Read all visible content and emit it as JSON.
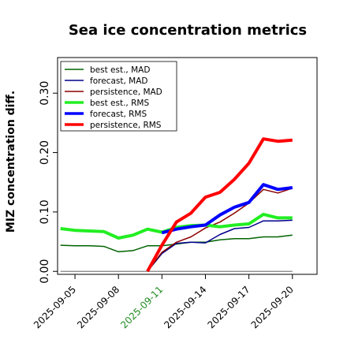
{
  "chart_data": {
    "type": "line",
    "title": "Sea ice concentration metrics",
    "xlabel": "",
    "ylabel": "MIZ concentration diff.",
    "xlim": [
      3.8,
      21.7
    ],
    "ylim": [
      -0.005,
      0.36
    ],
    "x_ticks": [
      {
        "value": 5,
        "label": "2025-09-05",
        "color": "#000000"
      },
      {
        "value": 8,
        "label": "2025-09-08",
        "color": "#000000"
      },
      {
        "value": 11,
        "label": "2025-09-11",
        "color": "#228b22"
      },
      {
        "value": 14,
        "label": "2025-09-14",
        "color": "#000000"
      },
      {
        "value": 17,
        "label": "2025-09-17",
        "color": "#000000"
      },
      {
        "value": 20,
        "label": "2025-09-20",
        "color": "#000000"
      }
    ],
    "y_ticks": [
      {
        "value": 0.0,
        "label": "0.00"
      },
      {
        "value": 0.1,
        "label": "0.10"
      },
      {
        "value": 0.2,
        "label": "0.20"
      },
      {
        "value": 0.3,
        "label": "0.30"
      }
    ],
    "grid": false,
    "legend_position": "top-left",
    "zero_line": {
      "y": 0.0,
      "x_start": 4.0,
      "x_end": 20.0,
      "color": "#808080"
    },
    "series": [
      {
        "name": "best est., MAD",
        "color": "#006400",
        "width": 1.5,
        "x": [
          4,
          5,
          6,
          7,
          8,
          9,
          10,
          11,
          12,
          13,
          14,
          15,
          16,
          17,
          18,
          19,
          20
        ],
        "y": [
          0.044,
          0.043,
          0.043,
          0.042,
          0.033,
          0.035,
          0.043,
          0.043,
          0.046,
          0.049,
          0.049,
          0.053,
          0.055,
          0.055,
          0.058,
          0.058,
          0.061
        ]
      },
      {
        "name": "forecast,  MAD",
        "color": "#00008b",
        "width": 1.5,
        "x": [
          10,
          11,
          12,
          13,
          14,
          15,
          16,
          17,
          18,
          19,
          20
        ],
        "y": [
          0.0,
          0.03,
          0.047,
          0.049,
          0.048,
          0.062,
          0.072,
          0.074,
          0.085,
          0.085,
          0.086
        ]
      },
      {
        "name": "persistence, MAD",
        "color": "#8b0000",
        "width": 1.5,
        "x": [
          10,
          11,
          12,
          13,
          14,
          15,
          16,
          17,
          18,
          19,
          20
        ],
        "y": [
          0.0,
          0.032,
          0.049,
          0.058,
          0.073,
          0.083,
          0.098,
          0.115,
          0.138,
          0.132,
          0.14
        ]
      },
      {
        "name": "best est., RMS",
        "color": "#22ee22",
        "width": 4,
        "x": [
          4,
          5,
          6,
          7,
          8,
          9,
          10,
          11,
          12,
          13,
          14,
          15,
          16,
          17,
          18,
          19,
          20
        ],
        "y": [
          0.072,
          0.069,
          0.068,
          0.067,
          0.056,
          0.061,
          0.071,
          0.066,
          0.074,
          0.077,
          0.078,
          0.075,
          0.078,
          0.08,
          0.096,
          0.09,
          0.09
        ]
      },
      {
        "name": "forecast,  RMS",
        "color": "#0000ff",
        "width": 4,
        "x": [
          11,
          12,
          13,
          14,
          15,
          16,
          17,
          18,
          19,
          20
        ],
        "y": [
          0.065,
          0.071,
          0.075,
          0.078,
          0.095,
          0.108,
          0.116,
          0.146,
          0.138,
          0.141
        ]
      },
      {
        "name": "persistence, RMS",
        "color": "#ff0000",
        "width": 4,
        "x": [
          10,
          11,
          12,
          13,
          14,
          15,
          16,
          17,
          18,
          19,
          20
        ],
        "y": [
          0.0,
          0.044,
          0.083,
          0.098,
          0.125,
          0.133,
          0.155,
          0.182,
          0.223,
          0.219,
          0.221
        ]
      }
    ]
  }
}
